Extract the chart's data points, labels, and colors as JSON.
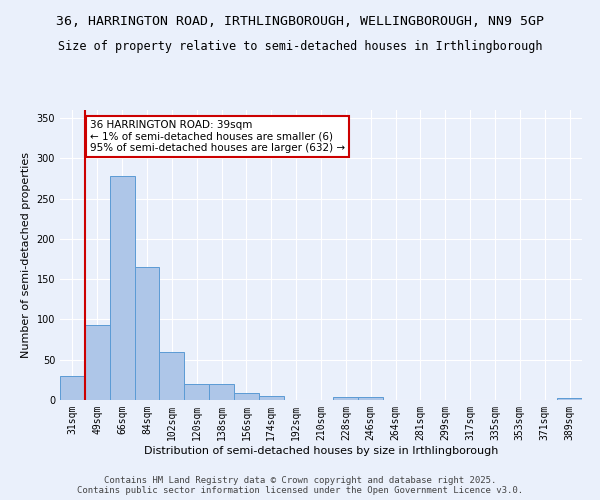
{
  "title_line1": "36, HARRINGTON ROAD, IRTHLINGBOROUGH, WELLINGBOROUGH, NN9 5GP",
  "title_line2": "Size of property relative to semi-detached houses in Irthlingborough",
  "xlabel": "Distribution of semi-detached houses by size in Irthlingborough",
  "ylabel": "Number of semi-detached properties",
  "categories": [
    "31sqm",
    "49sqm",
    "66sqm",
    "84sqm",
    "102sqm",
    "120sqm",
    "138sqm",
    "156sqm",
    "174sqm",
    "192sqm",
    "210sqm",
    "228sqm",
    "246sqm",
    "264sqm",
    "281sqm",
    "299sqm",
    "317sqm",
    "335sqm",
    "353sqm",
    "371sqm",
    "389sqm"
  ],
  "values": [
    30,
    93,
    278,
    165,
    60,
    20,
    20,
    9,
    5,
    0,
    0,
    4,
    4,
    0,
    0,
    0,
    0,
    0,
    0,
    0,
    2
  ],
  "bar_color": "#aec6e8",
  "bar_edge_color": "#5b9bd5",
  "annotation_title": "36 HARRINGTON ROAD: 39sqm",
  "annotation_line1": "← 1% of semi-detached houses are smaller (6)",
  "annotation_line2": "95% of semi-detached houses are larger (632) →",
  "vline_color": "#cc0000",
  "annotation_box_color": "#cc0000",
  "ylim": [
    0,
    360
  ],
  "yticks": [
    0,
    50,
    100,
    150,
    200,
    250,
    300,
    350
  ],
  "background_color": "#eaf0fb",
  "plot_bg_color": "#eaf0fb",
  "footer_line1": "Contains HM Land Registry data © Crown copyright and database right 2025.",
  "footer_line2": "Contains public sector information licensed under the Open Government Licence v3.0.",
  "title_fontsize": 9.5,
  "subtitle_fontsize": 8.5,
  "axis_label_fontsize": 8,
  "tick_fontsize": 7,
  "annotation_fontsize": 7.5,
  "footer_fontsize": 6.5
}
